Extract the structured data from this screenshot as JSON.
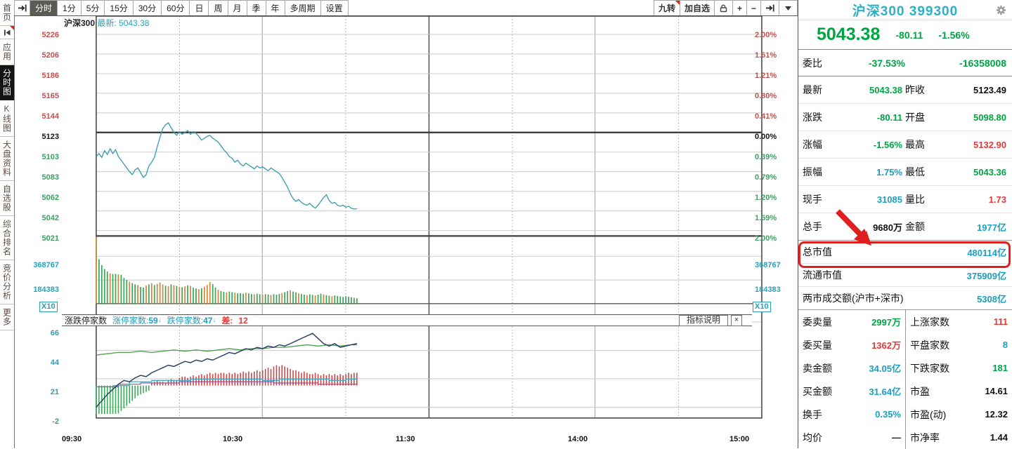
{
  "sidebar": {
    "items": [
      {
        "label": "首页"
      },
      {
        "icon": "rewind",
        "badge": true
      },
      {
        "label": "应用"
      },
      {
        "label": "分时图",
        "active": true
      },
      {
        "label": "K线图"
      },
      {
        "label": "大盘资料"
      },
      {
        "label": "自选股"
      },
      {
        "label": "综合排名"
      },
      {
        "label": "竞价分析"
      },
      {
        "label": "更多"
      }
    ]
  },
  "toolbar": {
    "tabs": [
      {
        "icon": "arrow-bar"
      },
      {
        "label": "分时",
        "active": true
      },
      {
        "label": "1分"
      },
      {
        "label": "5分"
      },
      {
        "label": "15分"
      },
      {
        "label": "30分"
      },
      {
        "label": "60分"
      },
      {
        "label": "日"
      },
      {
        "label": "周"
      },
      {
        "label": "月"
      },
      {
        "label": "季"
      },
      {
        "label": "年"
      },
      {
        "label": "多周期"
      },
      {
        "label": "设置"
      }
    ],
    "tools": [
      {
        "label": "九转",
        "badge": true,
        "name": "nine-turn-button"
      },
      {
        "label": "加自选",
        "name": "add-watchlist-button"
      },
      {
        "icon": "lock",
        "name": "lock-icon"
      },
      {
        "label": "+",
        "name": "zoom-in-button"
      },
      {
        "label": "−",
        "name": "zoom-out-button"
      },
      {
        "icon": "arrow-bar",
        "name": "next-arrow-icon"
      },
      {
        "icon": "caret",
        "name": "dropdown-caret-icon"
      }
    ]
  },
  "chart": {
    "title_name": "沪深300",
    "title_last_label": "最新:",
    "title_last_value": "5043.38",
    "price_axis": [
      [
        "5226",
        "axr"
      ],
      [
        "5206",
        "axr"
      ],
      [
        "5186",
        "axr"
      ],
      [
        "5165",
        "axr"
      ],
      [
        "5144",
        "axr"
      ],
      [
        "5123",
        "axk"
      ],
      [
        "5103",
        "axg"
      ],
      [
        "5083",
        "axg"
      ],
      [
        "5062",
        "axg"
      ],
      [
        "5042",
        "axg"
      ],
      [
        "5021",
        "axg"
      ]
    ],
    "pct_axis": [
      [
        "2.00%",
        "axr"
      ],
      [
        "1.61%",
        "axr"
      ],
      [
        "1.21%",
        "axr"
      ],
      [
        "0.80%",
        "axr"
      ],
      [
        "0.41%",
        "axr"
      ],
      [
        "0.00%",
        "axk"
      ],
      [
        "0.39%",
        "axg"
      ],
      [
        "0.79%",
        "axg"
      ],
      [
        "1.20%",
        "axg"
      ],
      [
        "1.59%",
        "axg"
      ],
      [
        "2.00%",
        "axg"
      ]
    ],
    "volume_axis": [
      "368767",
      "184383"
    ],
    "volume_multiplier": "X10",
    "indicator_axis": [
      [
        "66",
        "axt"
      ],
      [
        "44",
        "axt"
      ],
      [
        "21",
        "axt"
      ],
      [
        "-2",
        "axg"
      ]
    ],
    "time_axis": [
      "09:30",
      "10:30",
      "11:30",
      "14:00",
      "15:00"
    ],
    "legend": {
      "name": "涨跌停家数",
      "up_label": "涨停家数:",
      "up_value": "59",
      "up_arrow": "↓",
      "down_label": "跌停家数:",
      "down_value": "47",
      "down_arrow": "↓",
      "diff_label": "差:",
      "diff_value": "12"
    },
    "indicator_button": "指标说明",
    "close_glyph": "×"
  },
  "chart_data": {
    "type": "line",
    "title": "沪深300 分时走势",
    "x_range": [
      "09:30",
      "15:00"
    ],
    "price": {
      "prev_close": 5123.49,
      "open": 5098.8,
      "high": 5132.9,
      "low": 5043.36,
      "last": 5043.38,
      "ylim": [
        5021,
        5226
      ],
      "minute_prices": [
        5098,
        5101,
        5097,
        5104,
        5100,
        5106,
        5101,
        5105,
        5098,
        5094,
        5090,
        5086,
        5082,
        5079,
        5084,
        5086,
        5081,
        5076,
        5079,
        5088,
        5092,
        5097,
        5108,
        5118,
        5127,
        5131,
        5133,
        5128,
        5123,
        5120,
        5124,
        5121,
        5123,
        5125,
        5121,
        5124,
        5122,
        5119,
        5115,
        5117,
        5119,
        5120,
        5117,
        5115,
        5113,
        5109,
        5105,
        5102,
        5098,
        5096,
        5092,
        5094,
        5090,
        5088,
        5091,
        5089,
        5087,
        5085,
        5088,
        5086,
        5087,
        5085,
        5083,
        5086,
        5084,
        5082,
        5080,
        5076,
        5071,
        5066,
        5059,
        5054,
        5051,
        5053,
        5050,
        5048,
        5047,
        5049,
        5046,
        5044,
        5047,
        5051,
        5055,
        5058,
        5052,
        5049,
        5050,
        5047,
        5046,
        5047,
        5045,
        5046,
        5044,
        5043,
        5043.4
      ]
    },
    "volume": {
      "ylim": [
        0,
        368767
      ],
      "unit": "X10",
      "values": [
        520000,
        345000,
        300000,
        270000,
        250000,
        235000,
        230000,
        232000,
        228000,
        225000,
        200000,
        185000,
        170000,
        160000,
        150000,
        145000,
        130000,
        125000,
        140000,
        150000,
        160000,
        145000,
        155000,
        165000,
        150000,
        140000,
        135000,
        150000,
        145000,
        138000,
        132000,
        128000,
        135000,
        142000,
        138000,
        125000,
        118000,
        112000,
        120000,
        132000,
        145000,
        168000,
        152000,
        125000,
        108000,
        98000,
        92000,
        88000,
        95000,
        90000,
        85000,
        80000,
        82000,
        78000,
        85000,
        80000,
        75000,
        72000,
        78000,
        74000,
        70000,
        75000,
        72000,
        68000,
        74000,
        70000,
        76000,
        82000,
        90000,
        98000,
        105000,
        95000,
        88000,
        80000,
        75000,
        70000,
        66000,
        72000,
        68000,
        64000,
        70000,
        78000,
        72000,
        66000,
        62000,
        58000,
        64000,
        60000,
        56000,
        52000,
        58000,
        54000,
        50000,
        46000,
        42000
      ],
      "colors": "oggggoggogggoggoggogogooogogogogogoggogoooggoggoggogggoggoggoggogggoggoggoggoggoggoggoggggggg"
    },
    "indicator": {
      "name": "涨跌停家数",
      "limit_up_count": 59,
      "limit_down_count": 47,
      "difference": 12,
      "ticks": [
        66,
        44,
        21,
        -2
      ],
      "navy_line": [
        [
          0,
          -1
        ],
        [
          2,
          4
        ],
        [
          4,
          9
        ],
        [
          6,
          13
        ],
        [
          8,
          17
        ],
        [
          10,
          20
        ],
        [
          12,
          19
        ],
        [
          14,
          22
        ],
        [
          16,
          24
        ],
        [
          18,
          23
        ],
        [
          20,
          26
        ],
        [
          22,
          28
        ],
        [
          24,
          30
        ],
        [
          26,
          32
        ],
        [
          28,
          31
        ],
        [
          30,
          33
        ],
        [
          32,
          35
        ],
        [
          34,
          34
        ],
        [
          36,
          36
        ],
        [
          38,
          35
        ],
        [
          40,
          37
        ],
        [
          42,
          36
        ],
        [
          44,
          38
        ],
        [
          46,
          40
        ],
        [
          48,
          42
        ],
        [
          50,
          41
        ],
        [
          52,
          43
        ],
        [
          54,
          45
        ],
        [
          56,
          44
        ],
        [
          58,
          46
        ],
        [
          60,
          45
        ],
        [
          62,
          47
        ],
        [
          64,
          46
        ],
        [
          66,
          48
        ],
        [
          68,
          47
        ],
        [
          70,
          49
        ],
        [
          72,
          51
        ],
        [
          74,
          53
        ],
        [
          76,
          55
        ],
        [
          78,
          57
        ],
        [
          80,
          53
        ],
        [
          82,
          49
        ],
        [
          84,
          47
        ],
        [
          86,
          49
        ],
        [
          88,
          46
        ],
        [
          90,
          47
        ],
        [
          92,
          48
        ],
        [
          94,
          49
        ]
      ],
      "green_line": [
        [
          0,
          40
        ],
        [
          4,
          41
        ],
        [
          8,
          42
        ],
        [
          12,
          42
        ],
        [
          16,
          43
        ],
        [
          20,
          42
        ],
        [
          24,
          43
        ],
        [
          28,
          44
        ],
        [
          32,
          43
        ],
        [
          36,
          44
        ],
        [
          40,
          43
        ],
        [
          44,
          44
        ],
        [
          48,
          45
        ],
        [
          52,
          44
        ],
        [
          56,
          45
        ],
        [
          60,
          45
        ],
        [
          64,
          46
        ],
        [
          68,
          46
        ],
        [
          72,
          47
        ],
        [
          76,
          48
        ],
        [
          80,
          47
        ],
        [
          84,
          48
        ],
        [
          88,
          47
        ],
        [
          92,
          48
        ],
        [
          94,
          48
        ]
      ],
      "cyan_line": [
        [
          6,
          16
        ],
        [
          12,
          16
        ],
        [
          12,
          19
        ],
        [
          20,
          19
        ],
        [
          20,
          20
        ],
        [
          34,
          20
        ],
        [
          34,
          21
        ],
        [
          60,
          21
        ],
        [
          60,
          20
        ],
        [
          66,
          20
        ],
        [
          66,
          21
        ],
        [
          84,
          21
        ],
        [
          84,
          20
        ],
        [
          90,
          20
        ],
        [
          90,
          21
        ],
        [
          94,
          21
        ]
      ],
      "purple_line": [
        [
          0,
          15
        ],
        [
          8,
          15
        ],
        [
          8,
          17
        ],
        [
          16,
          17
        ],
        [
          16,
          18
        ],
        [
          30,
          18
        ],
        [
          30,
          19
        ],
        [
          56,
          19
        ],
        [
          64,
          19
        ],
        [
          64,
          18
        ],
        [
          80,
          18
        ],
        [
          80,
          17
        ],
        [
          94,
          17
        ]
      ],
      "bar_baseline": 16,
      "red_bars_start_minute": 20,
      "red_bars": [
        2,
        3,
        4,
        3,
        3,
        2,
        4,
        5,
        4,
        4,
        6,
        7,
        7,
        6,
        7,
        8,
        7,
        8,
        9,
        8,
        9,
        10,
        9,
        10,
        9,
        10,
        10,
        9,
        10,
        9,
        10,
        9,
        10,
        11,
        10,
        11,
        10,
        11,
        12,
        11,
        12,
        13,
        14,
        13,
        15,
        16,
        15,
        16,
        15,
        14,
        13,
        12,
        12,
        11,
        10,
        11,
        10,
        9,
        9,
        10,
        9,
        8,
        9,
        8,
        9,
        8,
        9,
        8,
        9,
        8,
        9,
        10,
        9,
        10,
        10
      ],
      "green_bars_start_minute": 0,
      "green_bars": [
        38,
        36,
        34,
        32,
        30,
        28,
        26,
        24,
        22,
        20,
        18,
        16,
        14,
        12,
        10,
        8,
        7,
        6,
        5,
        4
      ]
    }
  },
  "panel": {
    "symbol": "沪深300",
    "code": "399300",
    "last": "5043.38",
    "change": "-80.11",
    "change_pct": "-1.56%",
    "weibi": {
      "label": "委比",
      "pct": "-37.53%",
      "value": "-16358008"
    },
    "quote_pairs": [
      [
        "最新",
        "5043.38",
        "g",
        "昨收",
        "5123.49",
        "k"
      ],
      [
        "涨跌",
        "-80.11",
        "g",
        "开盘",
        "5098.80",
        "g"
      ],
      [
        "涨幅",
        "-1.56%",
        "g",
        "最高",
        "5132.90",
        "r"
      ],
      [
        "振幅",
        "1.75%",
        "t",
        "最低",
        "5043.36",
        "g"
      ],
      [
        "现手",
        "31085",
        "t",
        "量比",
        "1.73",
        "r"
      ],
      [
        "总手",
        "9680万",
        "k",
        "金额",
        "1977亿",
        "t"
      ]
    ],
    "wide_rows": [
      [
        "总市值",
        "480114亿",
        "t"
      ],
      [
        "流通市值",
        "375909亿",
        "t"
      ],
      [
        "两市成交额(沪市+深市)",
        "5308亿",
        "t"
      ]
    ],
    "bottom_rows": [
      [
        "委卖量",
        "2997万",
        "g",
        "上涨家数",
        "111",
        "r"
      ],
      [
        "委买量",
        "1362万",
        "r",
        "平盘家数",
        "8",
        "t"
      ],
      [
        "卖金额",
        "34.05亿",
        "t",
        "下跌家数",
        "181",
        "g"
      ],
      [
        "买金额",
        "31.64亿",
        "t",
        "市盈",
        "14.61",
        "k"
      ],
      [
        "换手",
        "0.35%",
        "t",
        "市盈(动)",
        "12.32",
        "k"
      ],
      [
        "均价",
        "—",
        "k",
        "市净率",
        "1.44",
        "k"
      ]
    ]
  },
  "colors": {
    "teal": "#1b9fc0",
    "green": "#00a443",
    "red": "#e23b3b",
    "line_teal": "#3d9db3",
    "vol_green": "#3fa45a",
    "vol_orange": "#cc8a3d",
    "ind_navy": "#2b3f66",
    "ind_green": "#4f9e4f",
    "ind_cyan": "#3baacb",
    "ind_purple": "#9b4fa0",
    "ind_red": "#d04040",
    "annotation_red": "#e01f1f"
  }
}
